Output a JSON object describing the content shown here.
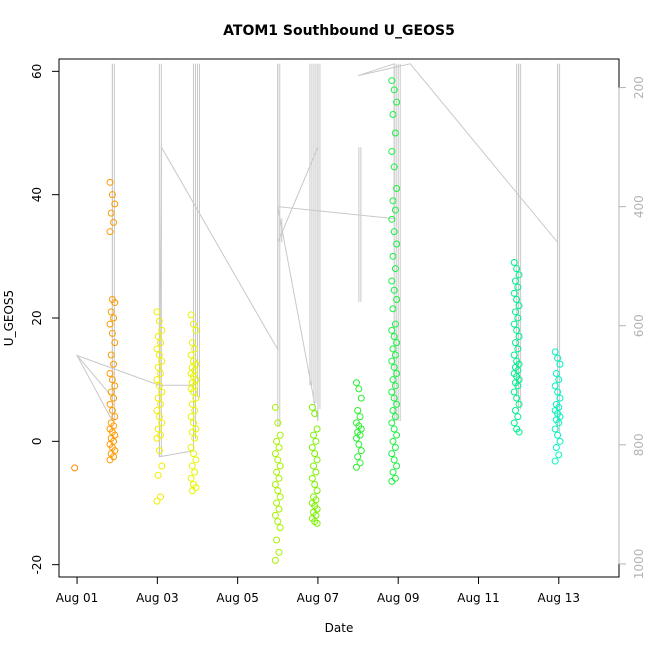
{
  "chart_data": {
    "type": "scatter",
    "title": "ATOM1 Southbound U_GEOS5",
    "xlabel": "Date",
    "ylabel": "U_GEOS5",
    "x_unit": "days since Aug 01",
    "xlim": [
      -0.45,
      13.5
    ],
    "ylim": [
      -22,
      62
    ],
    "x_ticks": [
      {
        "value": 0,
        "label": "Aug 01"
      },
      {
        "value": 2,
        "label": "Aug 03"
      },
      {
        "value": 4,
        "label": "Aug 05"
      },
      {
        "value": 6,
        "label": "Aug 07"
      },
      {
        "value": 8,
        "label": "Aug 09"
      },
      {
        "value": 10,
        "label": "Aug 11"
      },
      {
        "value": 12,
        "label": "Aug 13"
      }
    ],
    "y_ticks": [
      -20,
      0,
      20,
      40,
      60
    ],
    "y2_ticks": [
      200,
      400,
      600,
      800,
      1000
    ],
    "y2lim": [
      1022,
      152
    ],
    "grid": false,
    "legend": "none",
    "colors": {
      "series_start": "#ff8c00",
      "series_end": "#00ffc8",
      "pressure_line": "#c8c8c8",
      "axis": "#000000",
      "right_axis": "#b3b3b3"
    },
    "clusters": [
      {
        "x": 0.0,
        "y_values": [
          -4.3
        ],
        "color": "#ff8c00"
      },
      {
        "x": 0.88,
        "y_values": [
          42,
          40,
          38.5,
          37,
          35.5,
          34,
          23,
          22.5,
          21,
          20,
          19,
          17.5,
          16,
          14,
          12.5,
          11,
          10,
          9,
          8,
          7,
          6,
          5,
          4,
          3,
          2.5,
          2,
          1.5,
          1,
          0.5,
          0,
          -0.5,
          -1,
          -1.5,
          -2,
          -2.5,
          -3
        ],
        "color": "#ff9a00"
      },
      {
        "x": 2.05,
        "y_values": [
          21,
          19.5,
          18,
          17,
          16,
          15,
          14,
          13,
          12,
          11,
          10,
          9,
          8,
          7,
          6,
          5,
          4,
          3,
          2,
          1,
          0.5,
          -1.5,
          -4,
          -5.5,
          -9,
          -9.7
        ],
        "color": "#f2ee00"
      },
      {
        "x": 2.9,
        "y_values": [
          20.5,
          19,
          18,
          16,
          15,
          14,
          13,
          12.5,
          12,
          11.5,
          11,
          10.5,
          10,
          9.5,
          9,
          8.5,
          8,
          7,
          6,
          5,
          4,
          3,
          2,
          1.5,
          0.5,
          -1,
          -2,
          -3,
          -4,
          -5,
          -6,
          -7,
          -7.5,
          -8
        ],
        "color": "#e8f500"
      },
      {
        "x": 5.0,
        "y_values": [
          5.5,
          3,
          1,
          0,
          -1,
          -2,
          -3,
          -4,
          -5,
          -6,
          -7,
          -8,
          -9,
          -10,
          -11,
          -12,
          -13,
          -14,
          -16,
          -18,
          -19.3
        ],
        "color": "#a8f200"
      },
      {
        "x": 5.92,
        "y_values": [
          5.5,
          4.5,
          2,
          1,
          0,
          -1,
          -2,
          -3,
          -4,
          -5,
          -6,
          -7,
          -8,
          -9,
          -9.5,
          -10,
          -10.5,
          -11,
          -11.5,
          -12,
          -12.5,
          -13,
          -13.3
        ],
        "color": "#7df200"
      },
      {
        "x": 7.02,
        "y_values": [
          9.5,
          8.5,
          7,
          5,
          4,
          3,
          2.5,
          2,
          1.5,
          1,
          0.5,
          -0.5,
          -1.5,
          -2.5,
          -3.5,
          -4.2
        ],
        "color": "#2af030"
      },
      {
        "x": 7.9,
        "y_values": [
          58.5,
          57,
          55,
          53,
          50,
          47,
          44.5,
          41,
          39,
          37.5,
          36,
          34,
          32,
          30,
          28,
          26,
          24.5,
          23,
          21.5,
          19,
          18,
          17,
          16,
          15,
          14,
          13,
          12,
          11,
          10,
          9,
          8,
          7,
          6,
          5,
          4,
          3,
          2,
          1,
          0,
          -1,
          -2,
          -3,
          -4,
          -5,
          -6,
          -6.5
        ],
        "color": "#1df043"
      },
      {
        "x": 10.95,
        "y_values": [
          29,
          28,
          27,
          26,
          25,
          24,
          23,
          22,
          21,
          20,
          19,
          18,
          17,
          16,
          15,
          14,
          13,
          12.5,
          12,
          11.5,
          11,
          10.5,
          10,
          9.5,
          9,
          8,
          7,
          6,
          5,
          4,
          3,
          2,
          1.5
        ],
        "color": "#00f08f"
      },
      {
        "x": 11.97,
        "y_values": [
          14.5,
          13.5,
          12.5,
          11,
          10,
          9,
          8,
          7,
          6,
          5.5,
          5,
          4.5,
          4,
          3.5,
          3,
          2,
          1,
          0,
          -1,
          -2.2,
          -3.2
        ],
        "color": "#00f5c0"
      }
    ],
    "pressure_spikes": [
      {
        "x": 0.88,
        "top": 160,
        "bottom": 760
      },
      {
        "x": 2.05,
        "top": 160,
        "bottom": 820
      },
      {
        "x": 2.9,
        "top": 160,
        "bottom": 790
      },
      {
        "x": 2.95,
        "top": 160,
        "bottom": 640
      },
      {
        "x": 3.0,
        "top": 160,
        "bottom": 720
      },
      {
        "x": 5.0,
        "top": 160,
        "bottom": 770
      },
      {
        "x": 5.05,
        "top": 420,
        "bottom": 460
      },
      {
        "x": 5.8,
        "top": 160,
        "bottom": 700
      },
      {
        "x": 5.9,
        "top": 160,
        "bottom": 730
      },
      {
        "x": 6.0,
        "top": 160,
        "bottom": 740
      },
      {
        "x": 7.02,
        "top": 300,
        "bottom": 560
      },
      {
        "x": 7.9,
        "top": 160,
        "bottom": 760
      },
      {
        "x": 8.0,
        "top": 160,
        "bottom": 760
      },
      {
        "x": 10.95,
        "top": 160,
        "bottom": 720
      },
      {
        "x": 11.0,
        "top": 160,
        "bottom": 740
      },
      {
        "x": 11.97,
        "top": 160,
        "bottom": 780
      }
    ],
    "pressure_path": [
      [
        0.0,
        650
      ],
      [
        0.88,
        760
      ],
      [
        0.88,
        160
      ],
      [
        0.88,
        720
      ],
      [
        0.0,
        650
      ],
      [
        2.05,
        700
      ],
      [
        2.9,
        700
      ],
      [
        2.9,
        160
      ],
      [
        2.9,
        810
      ],
      [
        2.05,
        820
      ],
      [
        2.1,
        300
      ],
      [
        5.0,
        640
      ],
      [
        5.0,
        160
      ],
      [
        5.0,
        460
      ],
      [
        6.0,
        300
      ],
      [
        6.0,
        160
      ],
      [
        6.0,
        760
      ],
      [
        5.0,
        400
      ],
      [
        7.9,
        420
      ],
      [
        7.9,
        160
      ],
      [
        7.0,
        180
      ],
      [
        8.3,
        160
      ],
      [
        11.97,
        460
      ],
      [
        11.97,
        160
      ],
      [
        11.97,
        780
      ]
    ]
  }
}
